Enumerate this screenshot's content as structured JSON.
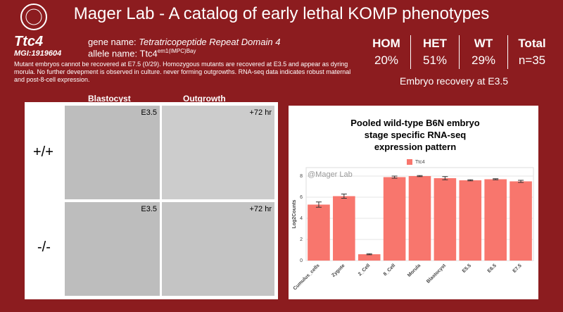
{
  "header": {
    "title": "Mager Lab - A catalog of early lethal KOMP phenotypes"
  },
  "gene": {
    "symbol": "Ttc4",
    "mgi": "MGI:1919604",
    "gene_name_label": "gene name:",
    "gene_name": "Tetratricopeptide Repeat Domain 4",
    "allele_label": "allele name:",
    "allele_base": "Ttc4",
    "allele_sup": "em1(IMPC)Bay",
    "description": "Mutant embryos cannot be recovered at E7.5 (0/29).  Homozygous mutants are recovered at E3.5 and appear as dyring morula. No further devepment is observed in culture. never forming outgrowths. RNA-seq data indicates robust maternal and post-8-cell expression."
  },
  "stats": {
    "headers": [
      "HOM",
      "HET",
      "WT",
      "Total"
    ],
    "values": [
      "20%",
      "51%",
      "29%",
      "n=35"
    ],
    "caption": "Embryo recovery at E3.5"
  },
  "images": {
    "columns": [
      "Blastocyst",
      "Outgrowth"
    ],
    "rows": [
      "+/+",
      "-/-"
    ],
    "stages": [
      "E3.5",
      "+72 hr"
    ]
  },
  "chart_data": {
    "type": "bar",
    "title": "Pooled wild-type B6N embryo stage specific RNA-seq expression pattern",
    "watermark": "@Mager Lab",
    "ylabel": "Log2Counts",
    "legend": "Ttc4",
    "color": "#f8766d",
    "categories": [
      "Cumulus_cells",
      "Zygote",
      "2_Cell",
      "8_Cell",
      "Morula",
      "Blastocyst",
      "E5.5",
      "E6.5",
      "E7.5"
    ],
    "values": [
      5.3,
      6.1,
      0.6,
      7.9,
      8.0,
      7.8,
      7.6,
      7.7,
      7.5
    ],
    "errors": [
      0.25,
      0.2,
      0.05,
      0.1,
      0.05,
      0.15,
      0.05,
      0.05,
      0.1
    ],
    "ylim": [
      0,
      8.8
    ],
    "yticks": [
      0,
      2,
      4,
      6,
      8
    ],
    "grid": true
  }
}
